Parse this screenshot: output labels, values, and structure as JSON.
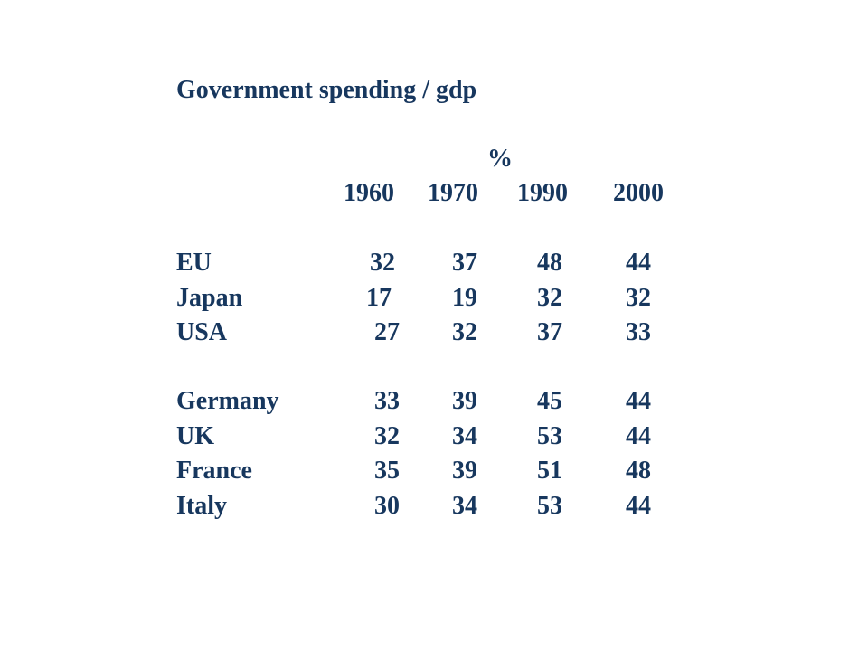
{
  "title": "Government spending / gdp",
  "unit": "%",
  "years": [
    "1960",
    "1970",
    "1990",
    "2000"
  ],
  "groups": [
    {
      "rows": [
        {
          "label": "EU",
          "values": [
            "32",
            "37",
            "48",
            "44"
          ]
        },
        {
          "label": "Japan",
          "values": [
            "17",
            "19",
            "32",
            "32"
          ]
        },
        {
          "label": "USA",
          "values": [
            "27",
            "32",
            "37",
            "33"
          ]
        }
      ]
    },
    {
      "rows": [
        {
          "label": "Germany",
          "values": [
            "33",
            "39",
            "45",
            "44"
          ]
        },
        {
          "label": "UK",
          "values": [
            "32",
            "34",
            "53",
            "44"
          ]
        },
        {
          "label": "France",
          "values": [
            "35",
            "39",
            "51",
            "48"
          ]
        },
        {
          "label": "Italy",
          "values": [
            "30",
            "34",
            "53",
            "44"
          ]
        }
      ]
    }
  ],
  "text_color": "#17375e"
}
